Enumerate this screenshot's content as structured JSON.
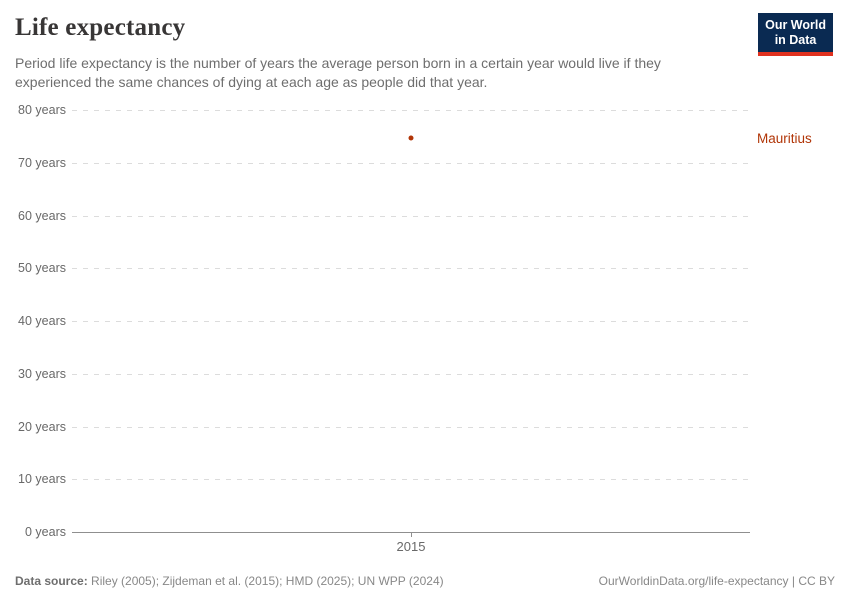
{
  "header": {
    "title": "Life expectancy",
    "subtitle": "Period life expectancy is the number of years the average person born in a certain year would live if they experienced the same chances of dying at each age as people did that year.",
    "logo": {
      "line1": "Our World",
      "line2": "in Data"
    }
  },
  "chart_data": {
    "type": "scatter",
    "title": "Life expectancy",
    "series": [
      {
        "name": "Mauritius",
        "color": "#b13507",
        "points": [
          {
            "x": 2015,
            "y": 74.7
          }
        ]
      }
    ],
    "x_ticks": [
      2015
    ],
    "y_ticks": [
      0,
      10,
      20,
      30,
      40,
      50,
      60,
      70,
      80
    ],
    "y_tick_suffix": " years",
    "ylim": [
      0,
      80
    ],
    "xlabel": "",
    "ylabel": "",
    "grid": "dashed-horizontal",
    "legend_position": "right-entity-label"
  },
  "footer": {
    "source_label": "Data source:",
    "source_text": " Riley (2005); Zijdeman et al. (2015); HMD (2025); UN WPP (2024)",
    "attribution": "OurWorldinData.org/life-expectancy | CC BY"
  },
  "colors": {
    "accent_series": "#b13507",
    "logo_background": "#0a2a52",
    "logo_underline": "#e0311f",
    "gridline": "#dcdcdc",
    "axis": "#8f8f8f",
    "text_muted": "#6e6e6e"
  }
}
